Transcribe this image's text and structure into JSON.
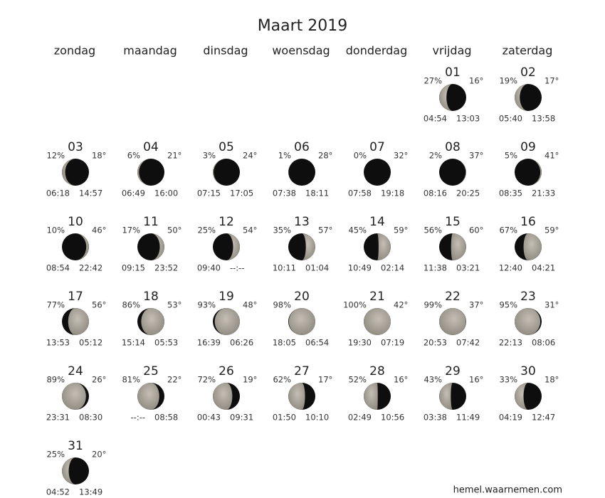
{
  "title": "Maart 2019",
  "weekdays": [
    "zondag",
    "maandag",
    "dinsdag",
    "woensdag",
    "donderdag",
    "vrijdag",
    "zaterdag"
  ],
  "days": [
    {
      "day": "01",
      "illumination": "27%",
      "altitude": "16°",
      "rise": "04:54",
      "set": "13:03"
    },
    {
      "day": "02",
      "illumination": "19%",
      "altitude": "17°",
      "rise": "05:40",
      "set": "13:58"
    },
    {
      "day": "03",
      "illumination": "12%",
      "altitude": "18°",
      "rise": "06:18",
      "set": "14:57"
    },
    {
      "day": "04",
      "illumination": "6%",
      "altitude": "21°",
      "rise": "06:49",
      "set": "16:00"
    },
    {
      "day": "05",
      "illumination": "3%",
      "altitude": "24°",
      "rise": "07:15",
      "set": "17:05"
    },
    {
      "day": "06",
      "illumination": "1%",
      "altitude": "28°",
      "rise": "07:38",
      "set": "18:11"
    },
    {
      "day": "07",
      "illumination": "0%",
      "altitude": "32°",
      "rise": "07:58",
      "set": "19:18"
    },
    {
      "day": "08",
      "illumination": "2%",
      "altitude": "37°",
      "rise": "08:16",
      "set": "20:25"
    },
    {
      "day": "09",
      "illumination": "5%",
      "altitude": "41°",
      "rise": "08:35",
      "set": "21:33"
    },
    {
      "day": "10",
      "illumination": "10%",
      "altitude": "46°",
      "rise": "08:54",
      "set": "22:42"
    },
    {
      "day": "11",
      "illumination": "17%",
      "altitude": "50°",
      "rise": "09:15",
      "set": "23:52"
    },
    {
      "day": "12",
      "illumination": "25%",
      "altitude": "54°",
      "rise": "09:40",
      "set": "--:--"
    },
    {
      "day": "13",
      "illumination": "35%",
      "altitude": "57°",
      "rise": "10:11",
      "set": "01:04"
    },
    {
      "day": "14",
      "illumination": "45%",
      "altitude": "59°",
      "rise": "10:49",
      "set": "02:14"
    },
    {
      "day": "15",
      "illumination": "56%",
      "altitude": "60°",
      "rise": "11:38",
      "set": "03:21"
    },
    {
      "day": "16",
      "illumination": "67%",
      "altitude": "59°",
      "rise": "12:40",
      "set": "04:21"
    },
    {
      "day": "17",
      "illumination": "77%",
      "altitude": "56°",
      "rise": "13:53",
      "set": "05:12"
    },
    {
      "day": "18",
      "illumination": "86%",
      "altitude": "53°",
      "rise": "15:14",
      "set": "05:53"
    },
    {
      "day": "19",
      "illumination": "93%",
      "altitude": "48°",
      "rise": "16:39",
      "set": "06:26"
    },
    {
      "day": "20",
      "illumination": "98%",
      "rise": "18:05",
      "set": "06:54"
    },
    {
      "day": "21",
      "illumination": "100%",
      "altitude": "42°",
      "rise": "19:30",
      "set": "07:19"
    },
    {
      "day": "22",
      "illumination": "99%",
      "altitude": "37°",
      "rise": "20:53",
      "set": "07:42"
    },
    {
      "day": "23",
      "illumination": "95%",
      "altitude": "31°",
      "rise": "22:13",
      "set": "08:06"
    },
    {
      "day": "24",
      "illumination": "89%",
      "altitude": "26°",
      "rise": "23:31",
      "set": "08:30"
    },
    {
      "day": "25",
      "illumination": "81%",
      "altitude": "22°",
      "rise": "--:--",
      "set": "08:58"
    },
    {
      "day": "26",
      "illumination": "72%",
      "altitude": "19°",
      "rise": "00:43",
      "set": "09:31"
    },
    {
      "day": "27",
      "illumination": "62%",
      "altitude": "17°",
      "rise": "01:50",
      "set": "10:10"
    },
    {
      "day": "28",
      "illumination": "52%",
      "altitude": "16°",
      "rise": "02:49",
      "set": "10:56"
    },
    {
      "day": "29",
      "illumination": "43%",
      "altitude": "16°",
      "rise": "03:38",
      "set": "11:49"
    },
    {
      "day": "30",
      "illumination": "33%",
      "altitude": "18°",
      "rise": "04:19",
      "set": "12:47"
    },
    {
      "day": "31",
      "illumination": "25%",
      "altitude": "20°",
      "rise": "04:52",
      "set": "13:49"
    }
  ],
  "footer": "hemel.waarnemen.com"
}
